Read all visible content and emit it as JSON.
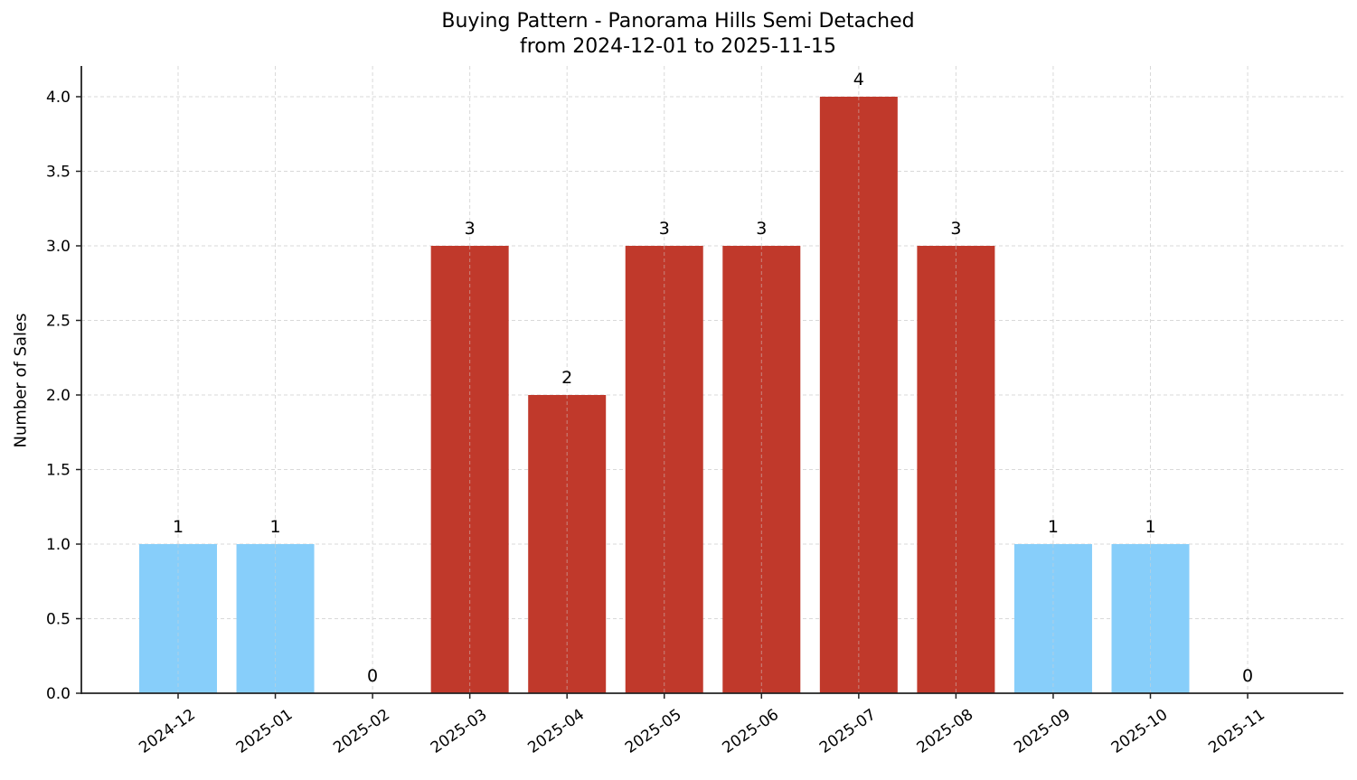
{
  "chart_data": {
    "type": "bar",
    "title": "Buying Pattern - Panorama Hills Semi Detached",
    "subtitle": "from 2024-12-01 to 2025-11-15",
    "xlabel": "",
    "ylabel": "Number of Sales",
    "categories": [
      "2024-12",
      "2025-01",
      "2025-02",
      "2025-03",
      "2025-04",
      "2025-05",
      "2025-06",
      "2025-07",
      "2025-08",
      "2025-09",
      "2025-10",
      "2025-11"
    ],
    "values": [
      1,
      1,
      0,
      3,
      2,
      3,
      3,
      4,
      3,
      1,
      1,
      0
    ],
    "bar_colors": [
      "#87CEFA",
      "#87CEFA",
      "#87CEFA",
      "#C0392B",
      "#C0392B",
      "#C0392B",
      "#C0392B",
      "#C0392B",
      "#C0392B",
      "#87CEFA",
      "#87CEFA",
      "#87CEFA"
    ],
    "data_labels": [
      "1",
      "1",
      "0",
      "3",
      "2",
      "3",
      "3",
      "4",
      "3",
      "1",
      "1",
      "0"
    ],
    "ylim": [
      0,
      4.2
    ],
    "yticks": [
      "0.0",
      "0.5",
      "1.0",
      "1.5",
      "2.0",
      "2.5",
      "3.0",
      "3.5",
      "4.0"
    ],
    "ytick_values": [
      0,
      0.5,
      1.0,
      1.5,
      2.0,
      2.5,
      3.0,
      3.5,
      4.0
    ],
    "grid": true,
    "legend": null,
    "xtick_rotation": 35
  },
  "colors": {
    "high": "#C0392B",
    "low": "#87CEFA",
    "grid": "#d9d9d9",
    "axis": "#222222"
  }
}
